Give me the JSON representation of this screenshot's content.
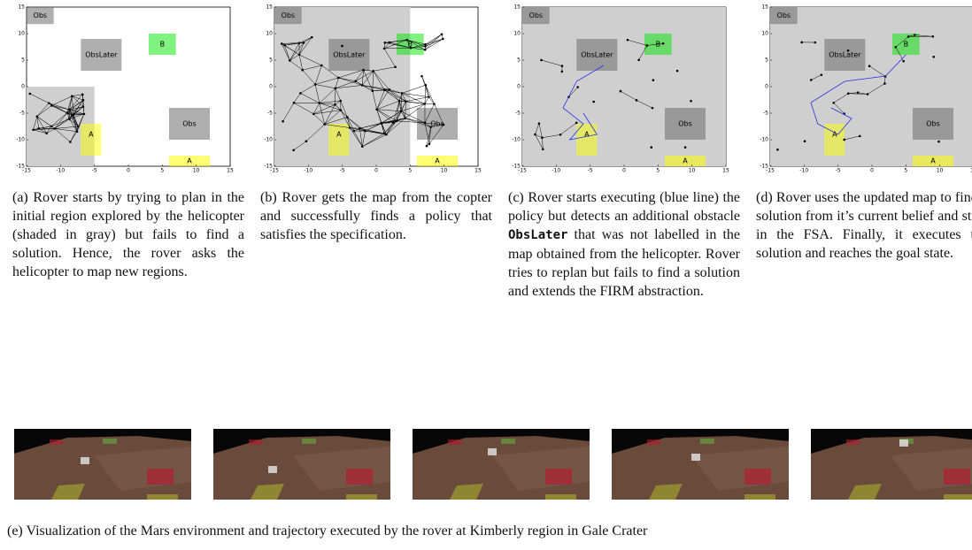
{
  "figure": {
    "ticks": [
      -15,
      -10,
      -5,
      0,
      5,
      10,
      15
    ],
    "regions": [
      {
        "label": "Obs"
      },
      {
        "label": "ObsLater"
      },
      {
        "label": "B"
      },
      {
        "label": "Obs"
      },
      {
        "label": "A"
      },
      {
        "label": "A"
      }
    ],
    "panels": [
      {
        "tag": "(a)",
        "caption": "Rover starts by trying to plan in the initial region explored by the helicopter (shaded in gray) but fails to find a solution. Hence, the rover asks the helicopter to map new regions."
      },
      {
        "tag": "(b)",
        "caption": "Rover gets the map from the copter and successfully finds a policy that satisfies the specification."
      },
      {
        "tag": "(c)",
        "caption_before": "Rover starts executing (blue line) the policy but detects an additional obstacle",
        "caption_code": "ObsLater",
        "caption_after": "that was not labelled in the map obtained from the helicopter. Rover tries to replan but fails to find a solution and extends the FIRM abstraction."
      },
      {
        "tag": "(d)",
        "caption": "Rover uses the updated map to find a solution from it’s current belief and state in the FSA. Finally, it executes the solution and reaches the goal state."
      }
    ],
    "bottom_caption": {
      "tag": "(e)",
      "text": "Visualization of the Mars environment and trajectory executed by the rover at Kimberly region in Gale Crater"
    }
  }
}
